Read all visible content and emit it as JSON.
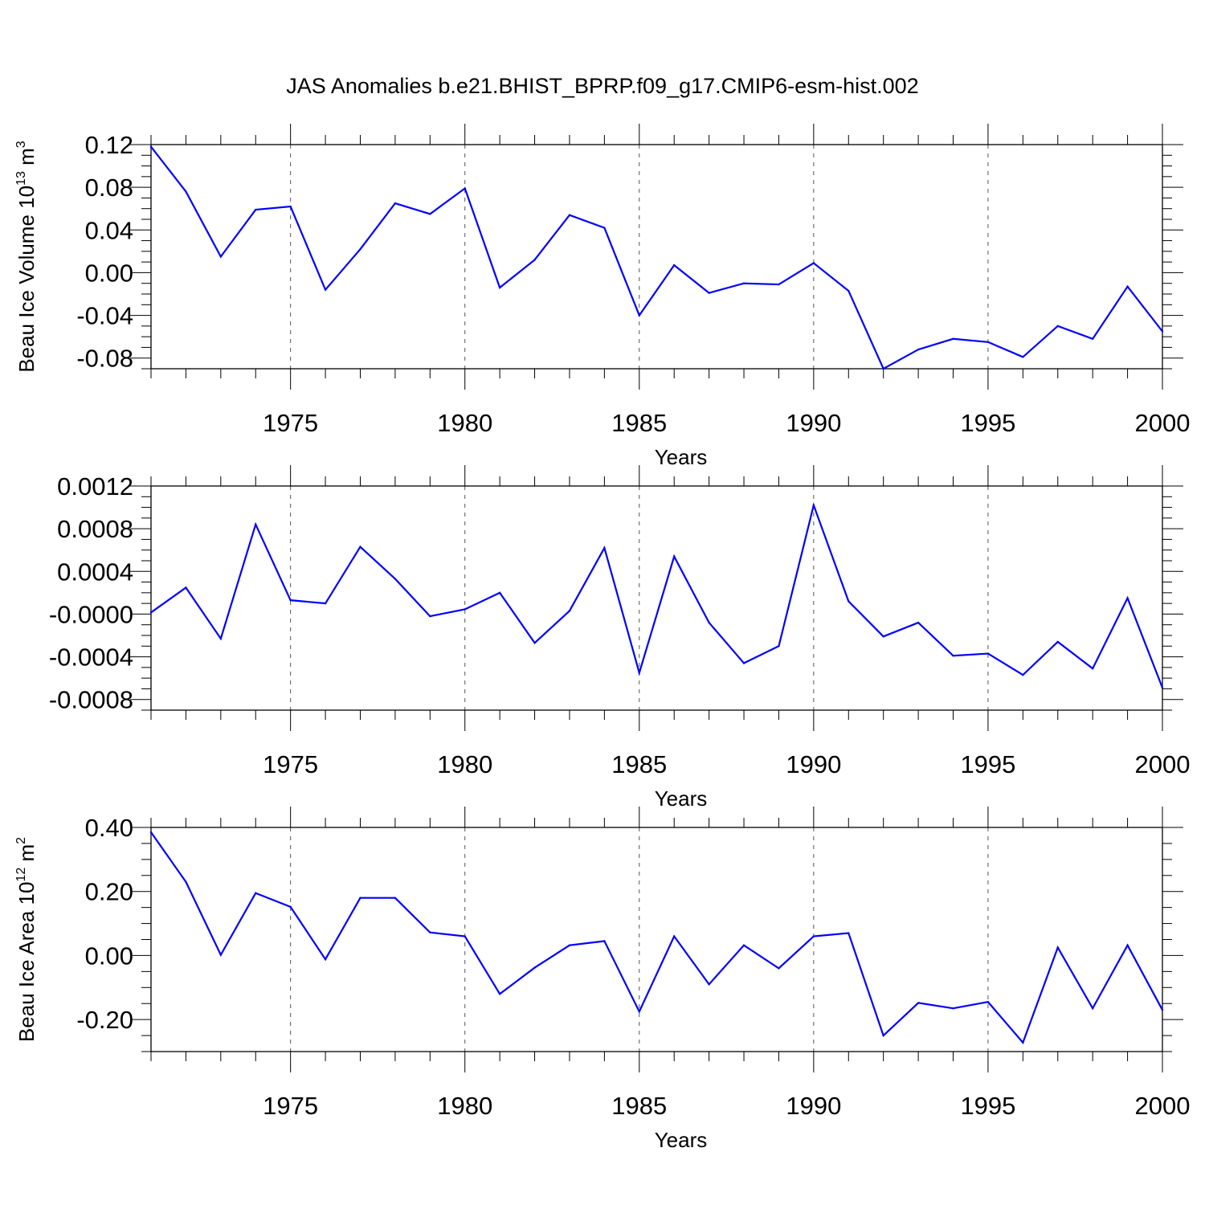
{
  "figure": {
    "title": "JAS Anomalies b.e21.BHIST_BPRP.f09_g17.CMIP6-esm-hist.002"
  },
  "style": {
    "line_color": "#0000ff",
    "axis_color": "#000000",
    "grid_color": "#555555"
  },
  "chart_data": [
    {
      "type": "line",
      "xlabel": "Years",
      "ylabel": {
        "main": "Beau Ice Volume 10",
        "sup": "13",
        "unit": " m",
        "unit_sup": "3"
      },
      "xlim": [
        1971,
        2000
      ],
      "ylim": [
        -0.09,
        0.12
      ],
      "x_ticks": [
        1975,
        1980,
        1985,
        1990,
        1995,
        2000
      ],
      "y_ticks": [
        -0.08,
        -0.04,
        0.0,
        0.04,
        0.08,
        0.12
      ],
      "y_tick_labels": [
        "-0.08",
        "-0.04",
        "0.00",
        "0.04",
        "0.08",
        "0.12"
      ],
      "grid": "vertical dashed at major x ticks",
      "x": [
        1971,
        1972,
        1973,
        1974,
        1975,
        1976,
        1977,
        1978,
        1979,
        1980,
        1981,
        1982,
        1983,
        1984,
        1985,
        1986,
        1987,
        1988,
        1989,
        1990,
        1991,
        1992,
        1993,
        1994,
        1995,
        1996,
        1997,
        1998,
        1999,
        2000
      ],
      "values": [
        0.118,
        0.076,
        0.015,
        0.059,
        0.062,
        -0.016,
        0.022,
        0.065,
        0.055,
        0.079,
        -0.014,
        0.012,
        0.054,
        0.042,
        -0.04,
        0.007,
        -0.019,
        -0.01,
        -0.011,
        0.009,
        -0.017,
        -0.09,
        -0.072,
        -0.062,
        -0.065,
        -0.079,
        -0.05,
        -0.062,
        -0.013,
        -0.055
      ]
    },
    {
      "type": "line",
      "xlabel": "Years",
      "ylabel": {
        "main": "",
        "sup": "",
        "unit": "",
        "unit_sup": ""
      },
      "xlim": [
        1971,
        2000
      ],
      "ylim": [
        -0.0009,
        0.0012
      ],
      "x_ticks": [
        1975,
        1980,
        1985,
        1990,
        1995,
        2000
      ],
      "y_ticks": [
        -0.0008,
        -0.0004,
        0.0,
        0.0004,
        0.0008,
        0.0012
      ],
      "y_tick_labels": [
        "-0.0008",
        "-0.0004",
        "-0.0000",
        "0.0004",
        "0.0008",
        "0.0012"
      ],
      "grid": "vertical dashed at major x ticks",
      "x": [
        1971,
        1972,
        1973,
        1974,
        1975,
        1976,
        1977,
        1978,
        1979,
        1980,
        1981,
        1982,
        1983,
        1984,
        1985,
        1986,
        1987,
        1988,
        1989,
        1990,
        1991,
        1992,
        1993,
        1994,
        1995,
        1996,
        1997,
        1998,
        1999,
        2000
      ],
      "values": [
        1.5e-05,
        0.000248,
        -0.00023,
        0.00084,
        0.00013,
        0.0001,
        0.00063,
        0.00033,
        -2e-05,
        4.5e-05,
        0.0002,
        -0.00027,
        3e-05,
        0.00062,
        -0.00055,
        0.00054,
        -8e-05,
        -0.00046,
        -0.0003,
        0.00102,
        0.00012,
        -0.00021,
        -8e-05,
        -0.00039,
        -0.00037,
        -0.00057,
        -0.00026,
        -0.00051,
        0.00015,
        -0.00069
      ]
    },
    {
      "type": "line",
      "xlabel": "Years",
      "ylabel": {
        "main": "Beau Ice Area 10",
        "sup": "12",
        "unit": " m",
        "unit_sup": "2"
      },
      "xlim": [
        1971,
        2000
      ],
      "ylim": [
        -0.3,
        0.4
      ],
      "x_ticks": [
        1975,
        1980,
        1985,
        1990,
        1995,
        2000
      ],
      "y_ticks": [
        -0.2,
        0.0,
        0.2,
        0.4
      ],
      "y_tick_labels": [
        "-0.20",
        "0.00",
        "0.20",
        "0.40"
      ],
      "grid": "vertical dashed at major x ticks",
      "x": [
        1971,
        1972,
        1973,
        1974,
        1975,
        1976,
        1977,
        1978,
        1979,
        1980,
        1981,
        1982,
        1983,
        1984,
        1985,
        1986,
        1987,
        1988,
        1989,
        1990,
        1991,
        1992,
        1993,
        1994,
        1995,
        1996,
        1997,
        1998,
        1999,
        2000
      ],
      "values": [
        0.385,
        0.23,
        0.002,
        0.195,
        0.152,
        -0.012,
        0.18,
        0.18,
        0.072,
        0.06,
        -0.12,
        -0.038,
        0.032,
        0.045,
        -0.175,
        0.06,
        -0.09,
        0.032,
        -0.04,
        0.06,
        0.07,
        -0.25,
        -0.148,
        -0.165,
        -0.145,
        -0.272,
        0.025,
        -0.165,
        0.032,
        -0.17
      ]
    }
  ]
}
